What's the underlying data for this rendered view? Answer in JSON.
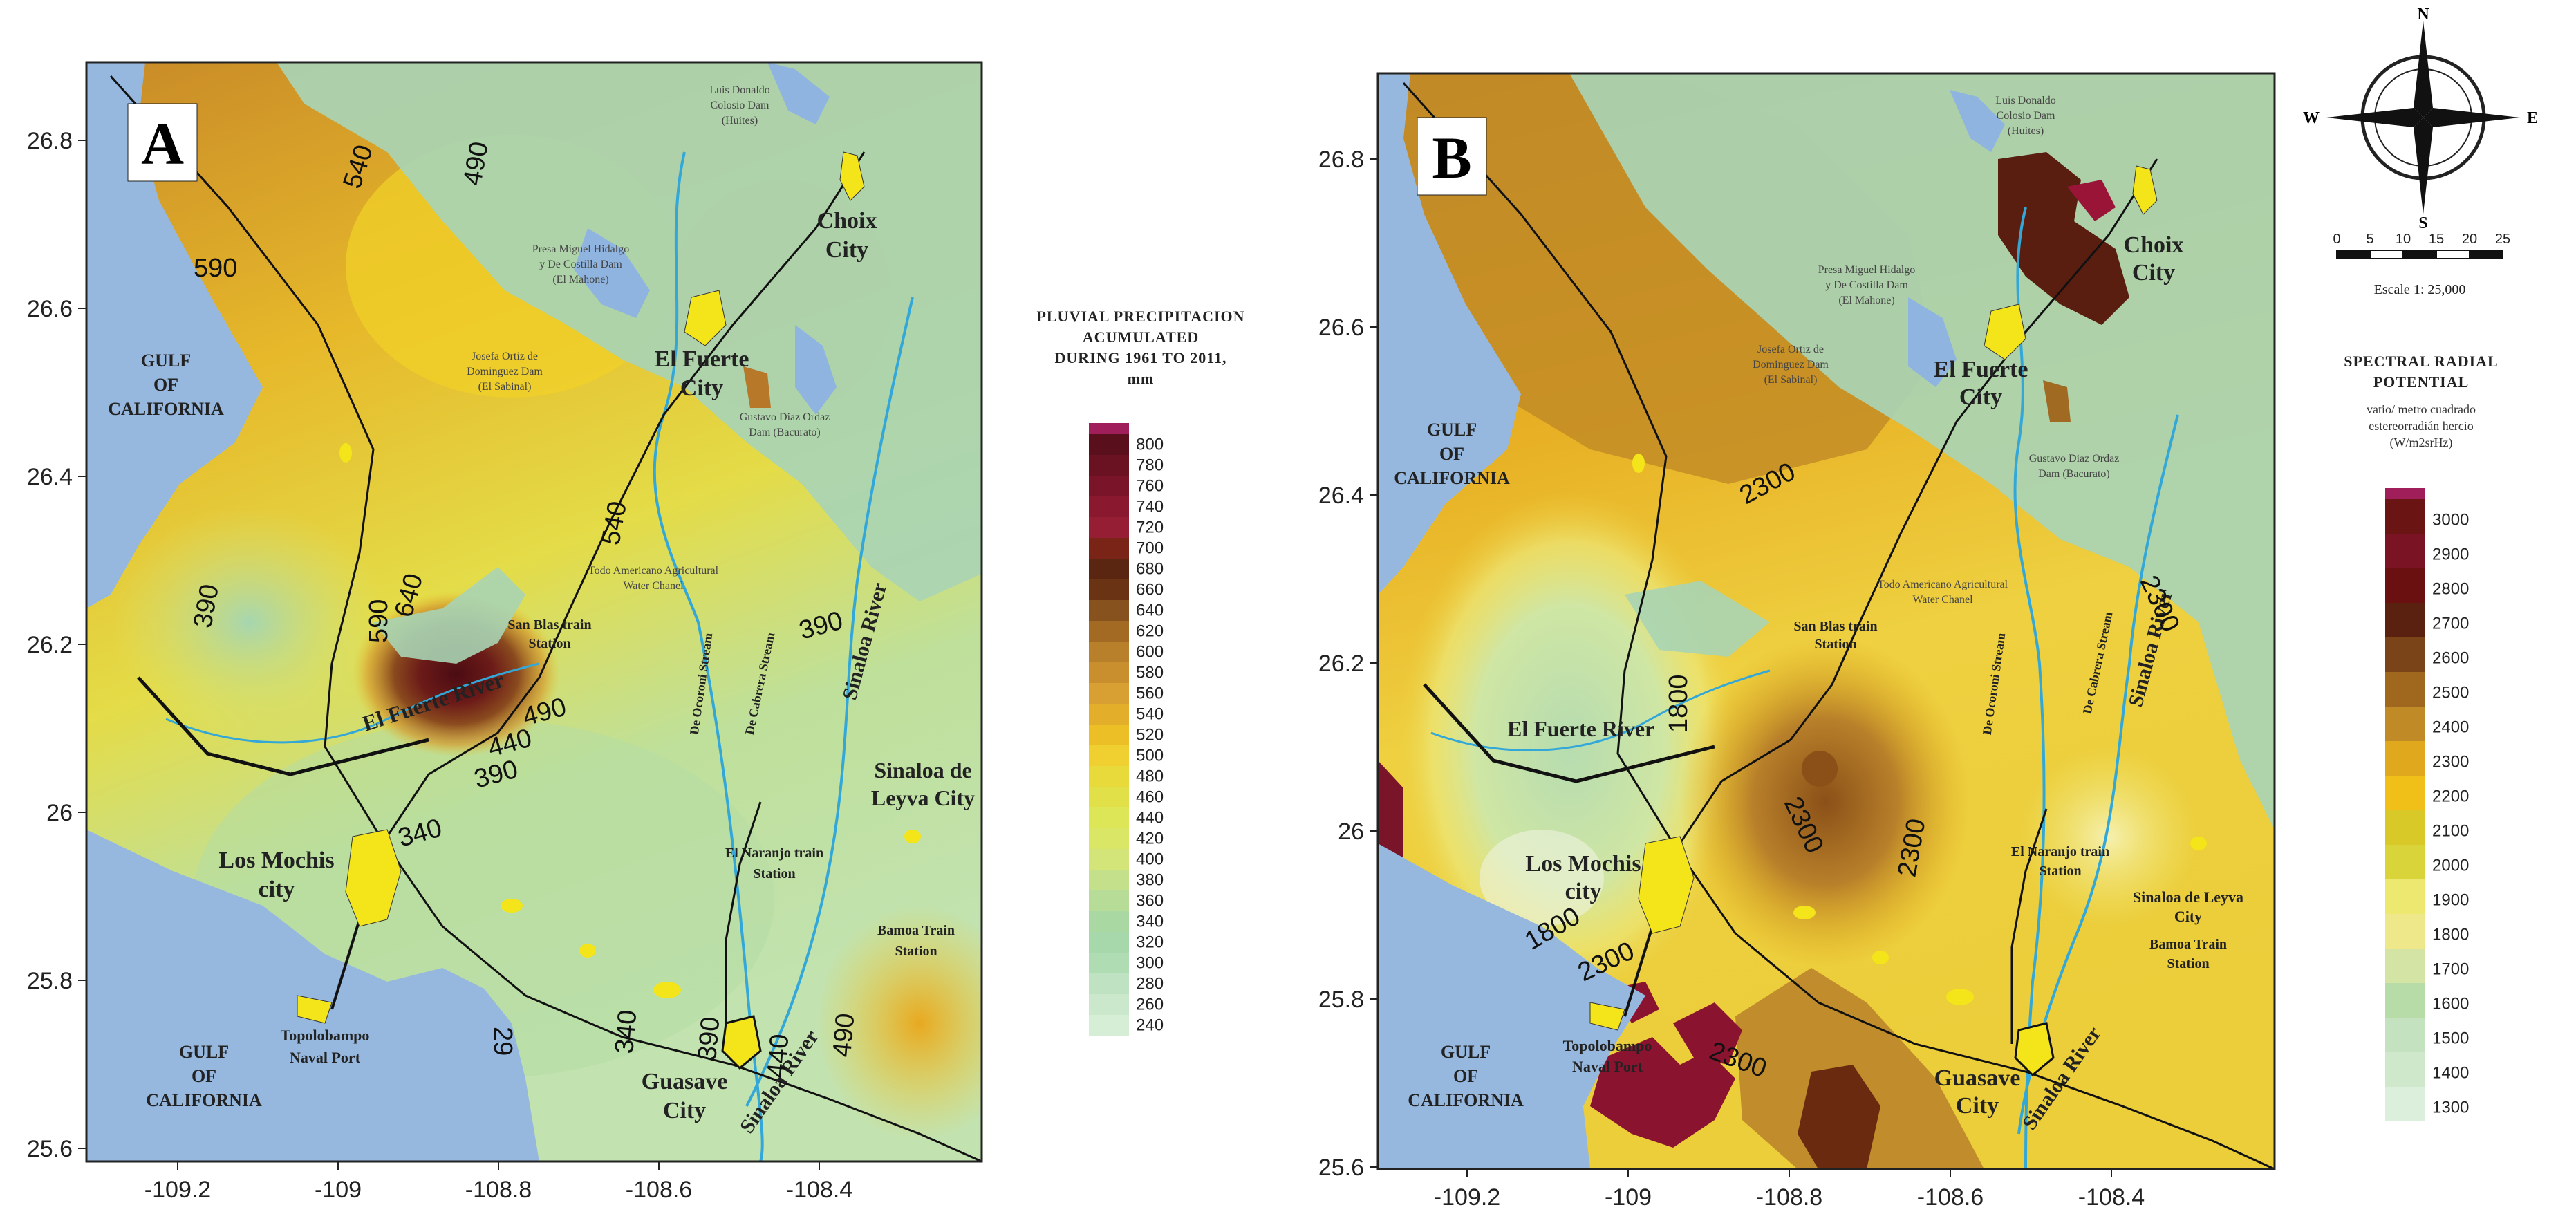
{
  "map_a": {
    "panel_label": "A",
    "x_ticks": [
      "-109.2",
      "-109",
      "-108.8",
      "-108.6",
      "-108.4"
    ],
    "y_ticks": [
      "26.8",
      "26.6",
      "26.4",
      "26.2",
      "26",
      "25.8",
      "25.6"
    ],
    "places": {
      "gulf_north": [
        "GULF",
        "OF",
        "CALIFORNIA"
      ],
      "gulf_south": [
        "GULF",
        "OF",
        "CALIFORNIA"
      ],
      "choix": [
        "Choix",
        "City"
      ],
      "el_fuerte": [
        "El Fuerte",
        "City"
      ],
      "los_mochis": [
        "Los Mochis",
        "city"
      ],
      "guasave": [
        "Guasave",
        "City"
      ],
      "sinaloa_de_leyva": [
        "Sinaloa de",
        "Leyva City"
      ],
      "topolobampo": [
        "Topolobampo",
        "Naval Port"
      ],
      "san_blas": [
        "San Blas train",
        "Station"
      ],
      "el_naranjo": [
        "El Naranjo train",
        "Station"
      ],
      "bamoa": [
        "Bamoa Train",
        "Station"
      ],
      "el_fuerte_river": "El Fuerte River",
      "sinaloa_river_n": "Sinaloa River",
      "sinaloa_river_s": "Sinaloa River",
      "ocoroni": "De Ocoroni Stream",
      "cabrera": "De Cabrera Stream",
      "dam_huites": [
        "Luis Donaldo",
        "Colosio Dam",
        "(Huites)"
      ],
      "dam_mahone": [
        "Presa Miguel Hidalgo",
        "y De Costilla Dam",
        "(El Mahone)"
      ],
      "dam_sabinal": [
        "Josefa Ortiz de",
        "Dominguez Dam",
        "(El Sabinal)"
      ],
      "dam_bacurato": [
        "Gustavo Diaz Ordaz",
        "Dam (Bacurato)"
      ],
      "canal": [
        "Todo Americano Agricultural",
        "Water Chanel"
      ]
    },
    "contours": [
      "540",
      "490",
      "590",
      "540",
      "390",
      "640",
      "590",
      "490",
      "440",
      "390",
      "390",
      "340",
      "340",
      "390",
      "440",
      "490",
      "29"
    ]
  },
  "legend_a": {
    "title": [
      "PLUVIAL PRECIPITACION",
      "ACUMULATED",
      "DURING  1961 TO 2011,",
      "mm"
    ],
    "values": [
      "800",
      "780",
      "760",
      "740",
      "720",
      "700",
      "680",
      "660",
      "640",
      "620",
      "600",
      "580",
      "560",
      "540",
      "520",
      "500",
      "480",
      "460",
      "440",
      "420",
      "400",
      "380",
      "360",
      "340",
      "320",
      "300",
      "280",
      "260",
      "240"
    ],
    "colors": [
      "#5a0f1c",
      "#6b1222",
      "#7a1428",
      "#8a1930",
      "#951d34",
      "#7a2418",
      "#5a2612",
      "#6a3414",
      "#88521e",
      "#a36a24",
      "#b8802a",
      "#c98e2e",
      "#d8a032",
      "#e3af2a",
      "#ecbf26",
      "#f0d030",
      "#e8da3a",
      "#e2e048",
      "#dde656",
      "#d9e666",
      "#d3e478",
      "#c4e08a",
      "#b6dc98",
      "#aad8a2",
      "#a6d8ac",
      "#b0dcb4",
      "#bfe2c2",
      "#cbe8cc",
      "#d6eed6"
    ]
  },
  "map_b": {
    "panel_label": "B",
    "x_ticks": [
      "-109.2",
      "-109",
      "-108.8",
      "-108.6",
      "-108.4"
    ],
    "y_ticks": [
      "26.8",
      "26.6",
      "26.4",
      "26.2",
      "26",
      "25.8",
      "25.6"
    ],
    "places": {
      "gulf_north": [
        "GULF",
        "OF",
        "CALIFORNIA"
      ],
      "gulf_south": [
        "GULF",
        "OF",
        "CALIFORNIA"
      ],
      "choix": [
        "Choix",
        "City"
      ],
      "el_fuerte": [
        "El Fuerte",
        "City"
      ],
      "los_mochis": [
        "Los Mochis",
        "city"
      ],
      "guasave": [
        "Guasave",
        "City"
      ],
      "sinaloa_de_leyva": [
        "Sinaloa de Leyva",
        "City"
      ],
      "topolobampo": [
        "Topolobampo",
        "Naval Port"
      ],
      "san_blas": [
        "San Blas train",
        "Station"
      ],
      "el_naranjo": [
        "El Naranjo train",
        "Station"
      ],
      "bamoa": [
        "Bamoa Train",
        "Station"
      ],
      "el_fuerte_river": "El Fuerte River",
      "sinaloa_river_n": "Sinaloa River",
      "sinaloa_river_s": "Sinaloa River",
      "ocoroni": "De Ocoroni Stream",
      "cabrera": "De Cabrera Stream",
      "dam_huites": [
        "Luis Donaldo",
        "Colosio Dam",
        "(Huites)"
      ],
      "dam_mahone": [
        "Presa Miguel Hidalgo",
        "y De Costilla Dam",
        "(El Mahone)"
      ],
      "dam_sabinal": [
        "Josefa Ortiz de",
        "Dominguez Dam",
        "(El Sabinal)"
      ],
      "dam_bacurato": [
        "Gustavo Diaz Ordaz",
        "Dam (Bacurato)"
      ],
      "canal": [
        "Todo Americano Agricultural",
        "Water Chanel"
      ]
    },
    "contours": [
      "2300",
      "2300",
      "1800",
      "2300",
      "2300",
      "1800",
      "2300",
      "2300"
    ]
  },
  "compass": {
    "n": "N",
    "s": "S",
    "e": "E",
    "w": "W"
  },
  "scale_bar": {
    "ticks": [
      "0",
      "5",
      "10",
      "15",
      "20",
      "25"
    ],
    "label": "Escale 1: 25,000"
  },
  "legend_b": {
    "title": [
      "SPECTRAL RADIAL",
      "POTENTIAL"
    ],
    "subtitle": [
      "vatio/ metro cuadrado",
      "estereorradián hercio",
      "(W/m2srHz)"
    ],
    "values": [
      "3000",
      "2900",
      "2800",
      "2700",
      "2600",
      "2500",
      "2400",
      "2300",
      "2200",
      "2100",
      "2000",
      "1900",
      "1800",
      "1700",
      "1600",
      "1500",
      "1400",
      "1300"
    ],
    "colors": [
      "#6a1414",
      "#7a1424",
      "#6a1010",
      "#5a2010",
      "#7a4418",
      "#a0681e",
      "#c08a26",
      "#e0a81c",
      "#f0c018",
      "#d8c828",
      "#d8d43a",
      "#ece870",
      "#eee88a",
      "#d4e4a4",
      "#b8dca8",
      "#c4e2c0",
      "#cfe8cc",
      "#dcefdc"
    ]
  }
}
